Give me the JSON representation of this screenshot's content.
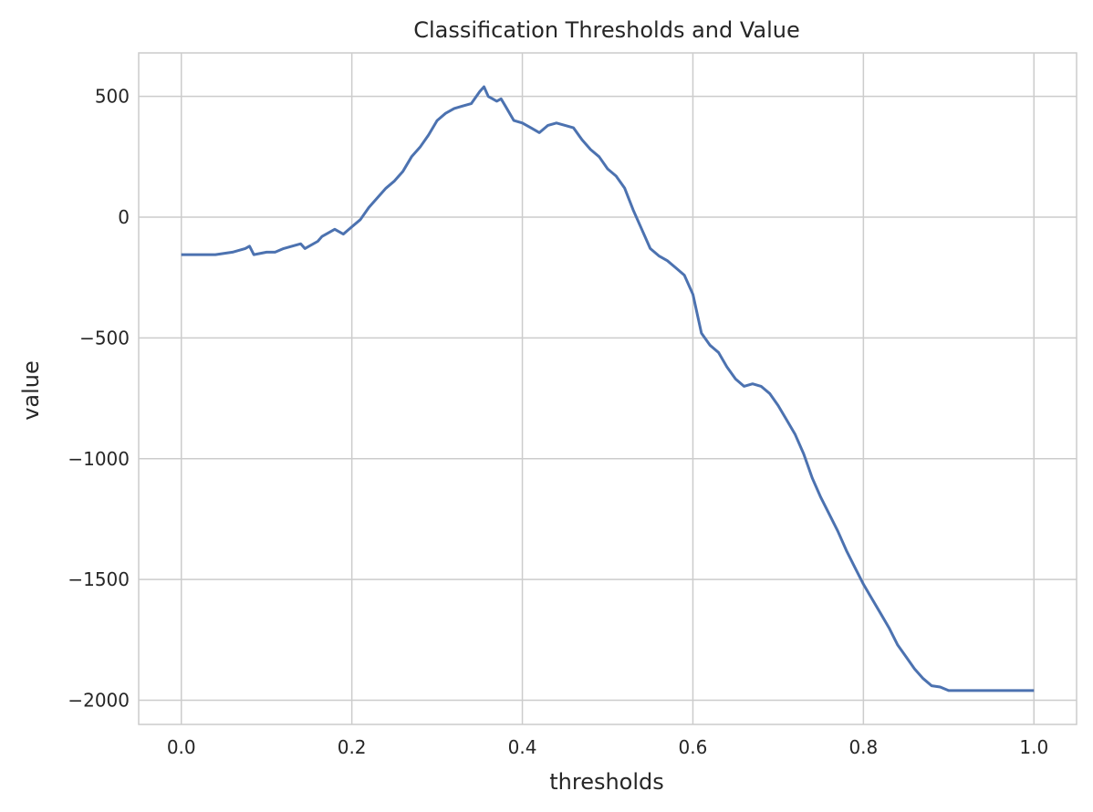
{
  "chart_data": {
    "type": "line",
    "title": "Classification Thresholds and Value",
    "xlabel": "thresholds",
    "ylabel": "value",
    "xlim": [
      -0.05,
      1.05
    ],
    "ylim": [
      -2100,
      680
    ],
    "xticks": [
      0.0,
      0.2,
      0.4,
      0.6,
      0.8,
      1.0
    ],
    "xtick_labels": [
      "0.0",
      "0.2",
      "0.4",
      "0.6",
      "0.8",
      "1.0"
    ],
    "yticks": [
      500,
      0,
      -500,
      -1000,
      -1500,
      -2000
    ],
    "ytick_labels": [
      "500",
      "0",
      "−500",
      "−1000",
      "−1500",
      "−2000"
    ],
    "grid": true,
    "series": [
      {
        "color": "#4c72b0",
        "x": [
          0.0,
          0.02,
          0.04,
          0.06,
          0.075,
          0.08,
          0.085,
          0.1,
          0.11,
          0.12,
          0.13,
          0.14,
          0.145,
          0.16,
          0.165,
          0.18,
          0.19,
          0.2,
          0.21,
          0.22,
          0.23,
          0.24,
          0.25,
          0.26,
          0.27,
          0.28,
          0.29,
          0.3,
          0.31,
          0.32,
          0.33,
          0.34,
          0.35,
          0.355,
          0.36,
          0.37,
          0.375,
          0.38,
          0.39,
          0.4,
          0.41,
          0.42,
          0.43,
          0.44,
          0.45,
          0.46,
          0.47,
          0.48,
          0.49,
          0.5,
          0.51,
          0.52,
          0.53,
          0.54,
          0.55,
          0.56,
          0.57,
          0.58,
          0.59,
          0.6,
          0.61,
          0.62,
          0.63,
          0.64,
          0.65,
          0.66,
          0.67,
          0.68,
          0.69,
          0.7,
          0.71,
          0.72,
          0.73,
          0.74,
          0.75,
          0.76,
          0.77,
          0.78,
          0.79,
          0.8,
          0.81,
          0.82,
          0.83,
          0.84,
          0.85,
          0.86,
          0.87,
          0.88,
          0.89,
          0.9,
          0.95,
          1.0
        ],
        "y": [
          -155,
          -155,
          -155,
          -145,
          -130,
          -120,
          -155,
          -145,
          -145,
          -130,
          -120,
          -110,
          -130,
          -100,
          -80,
          -50,
          -70,
          -40,
          -10,
          40,
          80,
          120,
          150,
          190,
          250,
          290,
          340,
          400,
          430,
          450,
          460,
          470,
          520,
          540,
          500,
          480,
          490,
          460,
          400,
          390,
          370,
          350,
          380,
          390,
          380,
          370,
          320,
          280,
          250,
          200,
          170,
          120,
          30,
          -50,
          -130,
          -160,
          -180,
          -210,
          -240,
          -320,
          -480,
          -530,
          -560,
          -620,
          -670,
          -700,
          -690,
          -700,
          -730,
          -780,
          -840,
          -900,
          -980,
          -1080,
          -1160,
          -1230,
          -1300,
          -1380,
          -1450,
          -1520,
          -1580,
          -1640,
          -1700,
          -1770,
          -1820,
          -1870,
          -1910,
          -1940,
          -1945,
          -1960,
          -1960,
          -1960
        ]
      }
    ]
  }
}
